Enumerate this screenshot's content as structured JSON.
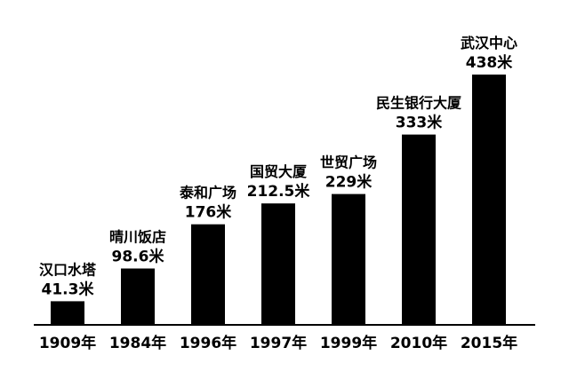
{
  "chart_data": {
    "type": "bar",
    "categories": [
      "1909年",
      "1984年",
      "1996年",
      "1997年",
      "1999年",
      "2010年",
      "2015年"
    ],
    "names": [
      "汉口水塔",
      "晴川饭店",
      "泰和广场",
      "国贸大厦",
      "世贸广场",
      "民生银行大厦",
      "武汉中心"
    ],
    "value_labels": [
      "41.3米",
      "98.6米",
      "176米",
      "212.5米",
      "229米",
      "333米",
      "438米"
    ],
    "values": [
      41.3,
      98.6,
      176,
      212.5,
      229,
      333,
      438
    ],
    "unit": "米",
    "ylim": [
      0,
      438
    ],
    "grid": false,
    "legend": "none",
    "bar_color": "#000000",
    "axis_color": "#000000"
  }
}
